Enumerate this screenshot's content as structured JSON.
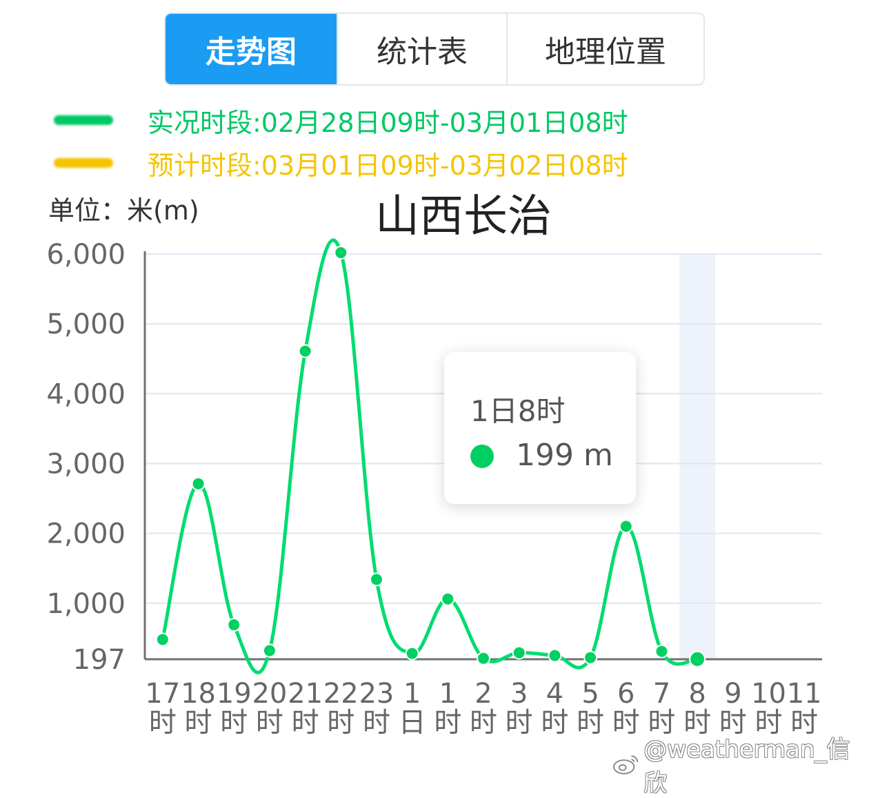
{
  "tabs": [
    {
      "label": "走势图",
      "active": true
    },
    {
      "label": "统计表",
      "active": false
    },
    {
      "label": "地理位置",
      "active": false
    }
  ],
  "legend": {
    "actual": {
      "label": "实况时段:02月28日09时-03月01日08时",
      "color": "#00c864"
    },
    "forecast": {
      "label": "预计时段:03月01日09时-03月02日08时",
      "color": "#f5c400"
    }
  },
  "unit_label": "单位：米(m)",
  "chart_title": "山西长治",
  "tooltip": {
    "time": "1日8时",
    "value": "199 m"
  },
  "watermark": "@weatherman_信欣",
  "colors": {
    "tab_active": "#1a9cf2",
    "line": "#00dc6e",
    "marker": "#00d061",
    "axis": "#707070",
    "grid": "#dfe6f2",
    "highlight_band": "#eef2fa"
  },
  "chart_data": {
    "type": "line",
    "ylim": [
      197,
      6000
    ],
    "y_ticks": [
      197,
      1000,
      2000,
      3000,
      4000,
      5000,
      6000
    ],
    "y_tick_labels": [
      "197",
      "1,000",
      "2,000",
      "3,000",
      "4,000",
      "5,000",
      "6,000"
    ],
    "x_labels": [
      [
        "17",
        "时"
      ],
      [
        "18",
        "时"
      ],
      [
        "19",
        "时"
      ],
      [
        "20",
        "时"
      ],
      [
        "21",
        "时"
      ],
      [
        "22",
        "时"
      ],
      [
        "23",
        "时"
      ],
      [
        "1",
        "日"
      ],
      [
        "1",
        "时"
      ],
      [
        "2",
        "时"
      ],
      [
        "3",
        "时"
      ],
      [
        "4",
        "时"
      ],
      [
        "5",
        "时"
      ],
      [
        "6",
        "时"
      ],
      [
        "7",
        "时"
      ],
      [
        "8",
        "时"
      ],
      [
        "9",
        "时"
      ],
      [
        "10",
        "时"
      ],
      [
        "11",
        "时"
      ]
    ],
    "values": [
      480,
      2710,
      690,
      320,
      4610,
      6020,
      1340,
      280,
      1060,
      210,
      290,
      250,
      220,
      2100,
      310,
      199,
      null,
      null,
      null
    ],
    "highlight_index": 15
  }
}
